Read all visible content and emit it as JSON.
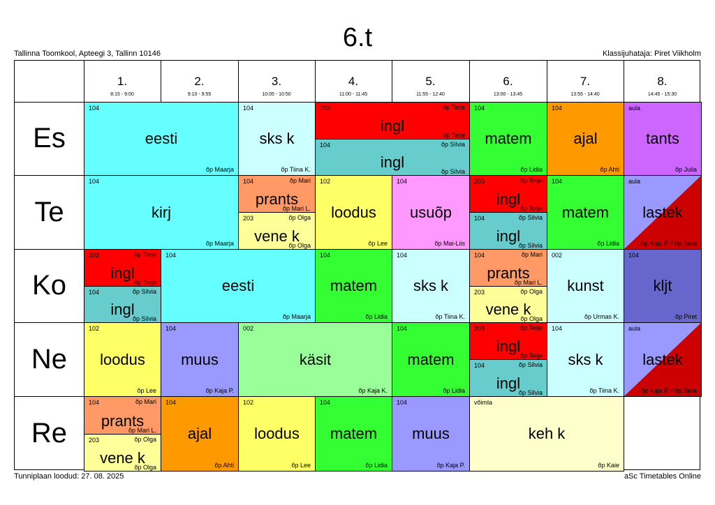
{
  "title": "6.t",
  "school": "Tallinna Toomkool, Apteegi 3, Tallinn 10146",
  "teacher_line": "Klassijuhataja: Piret Viikholm",
  "footer_left": "Tunniplaan loodud: 27. 08. 2025",
  "footer_right": "aSc Timetables Online",
  "periods": [
    {
      "num": "1.",
      "time": "8:15 - 9:00"
    },
    {
      "num": "2.",
      "time": "9:10 - 9:55"
    },
    {
      "num": "3.",
      "time": "10:05 - 10:50"
    },
    {
      "num": "4.",
      "time": "11:00 - 11:45"
    },
    {
      "num": "5.",
      "time": "11:55 - 12:40"
    },
    {
      "num": "6.",
      "time": "13:00 - 13:45"
    },
    {
      "num": "7.",
      "time": "13:55 - 14:40"
    },
    {
      "num": "8.",
      "time": "14:45 - 15:30"
    }
  ],
  "days": [
    "Es",
    "Te",
    "Ko",
    "Ne",
    "Re"
  ],
  "lessons": [
    {
      "day": 0,
      "start": 0,
      "span": 2,
      "part": "full",
      "room": "104",
      "subject": "eesti",
      "teacher": "õp Maarja",
      "color": "#66ffff"
    },
    {
      "day": 0,
      "start": 2,
      "span": 1,
      "part": "full",
      "room": "104",
      "subject": "sks k",
      "teacher": "õp Tiina K.",
      "color": "#ccffff"
    },
    {
      "day": 0,
      "start": 3,
      "span": 2,
      "part": "top",
      "room": "203",
      "subject": "ingl",
      "teacher_top": "õp Terje",
      "teacher": "õp Terje",
      "color": "#ff0000"
    },
    {
      "day": 0,
      "start": 3,
      "span": 2,
      "part": "bottom",
      "room": "104",
      "subject": "ingl",
      "teacher_top": "õp Silvia",
      "teacher": "õp Silvia",
      "color": "#66cccc"
    },
    {
      "day": 0,
      "start": 5,
      "span": 1,
      "part": "full",
      "room": "104",
      "subject": "matem",
      "teacher": "õp Lidia",
      "color": "#33ff33"
    },
    {
      "day": 0,
      "start": 6,
      "span": 1,
      "part": "full",
      "room": "104",
      "subject": "ajal",
      "teacher": "õp Ahti",
      "color": "#ff9900"
    },
    {
      "day": 0,
      "start": 7,
      "span": 1,
      "part": "full",
      "room": "aula",
      "subject": "tants",
      "teacher": "õp Julia",
      "color": "#cc66ff"
    },
    {
      "day": 1,
      "start": 0,
      "span": 2,
      "part": "full",
      "room": "104",
      "subject": "kirj",
      "teacher": "õp Maarja",
      "color": "#66ffff"
    },
    {
      "day": 1,
      "start": 2,
      "span": 1,
      "part": "top",
      "room": "104",
      "subject": "prants",
      "teacher_top": "õp Mari",
      "teacher": "õp Mari L.",
      "color": "#ff9966"
    },
    {
      "day": 1,
      "start": 2,
      "span": 1,
      "part": "bottom",
      "room": "203",
      "subject": "vene k",
      "teacher_top": "õp Olga",
      "teacher": "õp Olga",
      "color": "#ffff99"
    },
    {
      "day": 1,
      "start": 3,
      "span": 1,
      "part": "full",
      "room": "102",
      "subject": "loodus",
      "teacher": "õp Lee",
      "color": "#ffff66"
    },
    {
      "day": 1,
      "start": 4,
      "span": 1,
      "part": "full",
      "room": "104",
      "subject": "usuõp",
      "teacher": "õp Mai-Liis",
      "color": "#ff99ff"
    },
    {
      "day": 1,
      "start": 5,
      "span": 1,
      "part": "top",
      "room": "203",
      "subject": "ingl",
      "teacher_top": "õp Terje",
      "teacher": "õp Terje",
      "color": "#ff0000"
    },
    {
      "day": 1,
      "start": 5,
      "span": 1,
      "part": "bottom",
      "room": "104",
      "subject": "ingl",
      "teacher_top": "õp Silvia",
      "teacher": "õp Silvia",
      "color": "#66cccc"
    },
    {
      "day": 1,
      "start": 6,
      "span": 1,
      "part": "full",
      "room": "104",
      "subject": "matem",
      "teacher": "õp Lidia",
      "color": "#33ff33"
    },
    {
      "day": 1,
      "start": 7,
      "span": 1,
      "part": "full",
      "room": "aula",
      "subject": "lastek",
      "teacher": "õp Kaja P. / õp Jana",
      "color": "#9999ff",
      "color2": "#cc0000"
    },
    {
      "day": 2,
      "start": 0,
      "span": 1,
      "part": "top",
      "room": "203",
      "subject": "ingl",
      "teacher_top": "õp Terje",
      "teacher": "õp Terje",
      "color": "#ff0000"
    },
    {
      "day": 2,
      "start": 0,
      "span": 1,
      "part": "bottom",
      "room": "104",
      "subject": "ingl",
      "teacher_top": "õp Silvia",
      "teacher": "õp Silvia",
      "color": "#66cccc"
    },
    {
      "day": 2,
      "start": 1,
      "span": 2,
      "part": "full",
      "room": "104",
      "subject": "eesti",
      "teacher": "õp Maarja",
      "color": "#66ffff"
    },
    {
      "day": 2,
      "start": 3,
      "span": 1,
      "part": "full",
      "room": "104",
      "subject": "matem",
      "teacher": "õp Lidia",
      "color": "#33ff33"
    },
    {
      "day": 2,
      "start": 4,
      "span": 1,
      "part": "full",
      "room": "104",
      "subject": "sks k",
      "teacher": "õp Tiina K.",
      "color": "#ccffff"
    },
    {
      "day": 2,
      "start": 5,
      "span": 1,
      "part": "top",
      "room": "104",
      "subject": "prants",
      "teacher_top": "õp Mari",
      "teacher": "õp Mari L.",
      "color": "#ff9966"
    },
    {
      "day": 2,
      "start": 5,
      "span": 1,
      "part": "bottom",
      "room": "203",
      "subject": "vene k",
      "teacher_top": "õp Olga",
      "teacher": "õp Olga",
      "color": "#ffff99"
    },
    {
      "day": 2,
      "start": 6,
      "span": 1,
      "part": "full",
      "room": "002",
      "subject": "kunst",
      "teacher": "õp Urmas K.",
      "color": "#ccffff"
    },
    {
      "day": 2,
      "start": 7,
      "span": 1,
      "part": "full",
      "room": "104",
      "subject": "kljt",
      "teacher": "õp Piret",
      "color": "#6666cc"
    },
    {
      "day": 3,
      "start": 0,
      "span": 1,
      "part": "full",
      "room": "102",
      "subject": "loodus",
      "teacher": "õp Lee",
      "color": "#ffff66"
    },
    {
      "day": 3,
      "start": 1,
      "span": 1,
      "part": "full",
      "room": "104",
      "subject": "muus",
      "teacher": "õp Kaja P.",
      "color": "#9999ff"
    },
    {
      "day": 3,
      "start": 2,
      "span": 2,
      "part": "full",
      "room": "002",
      "subject": "käsit",
      "teacher": "õp Kaja K.",
      "color": "#99ff99"
    },
    {
      "day": 3,
      "start": 4,
      "span": 1,
      "part": "full",
      "room": "104",
      "subject": "matem",
      "teacher": "õp Lidia",
      "color": "#33ff33"
    },
    {
      "day": 3,
      "start": 5,
      "span": 1,
      "part": "top",
      "room": "203",
      "subject": "ingl",
      "teacher_top": "õp Terje",
      "teacher": "õp Terje",
      "color": "#ff0000"
    },
    {
      "day": 3,
      "start": 5,
      "span": 1,
      "part": "bottom",
      "room": "104",
      "subject": "ingl",
      "teacher_top": "õp Silvia",
      "teacher": "õp Silvia",
      "color": "#66cccc"
    },
    {
      "day": 3,
      "start": 6,
      "span": 1,
      "part": "full",
      "room": "104",
      "subject": "sks k",
      "teacher": "õp Tiina K.",
      "color": "#ccffff"
    },
    {
      "day": 3,
      "start": 7,
      "span": 1,
      "part": "full",
      "room": "aula",
      "subject": "lastek",
      "teacher": "õp Kaja P. / õp Jana",
      "color": "#9999ff",
      "color2": "#cc0000"
    },
    {
      "day": 4,
      "start": 0,
      "span": 1,
      "part": "top",
      "room": "104",
      "subject": "prants",
      "teacher_top": "õp Mari",
      "teacher": "õp Mari L.",
      "color": "#ff9966"
    },
    {
      "day": 4,
      "start": 0,
      "span": 1,
      "part": "bottom",
      "room": "203",
      "subject": "vene k",
      "teacher_top": "õp Olga",
      "teacher": "õp Olga",
      "color": "#ffff99"
    },
    {
      "day": 4,
      "start": 1,
      "span": 1,
      "part": "full",
      "room": "104",
      "subject": "ajal",
      "teacher": "õp Ahti",
      "color": "#ff9900"
    },
    {
      "day": 4,
      "start": 2,
      "span": 1,
      "part": "full",
      "room": "102",
      "subject": "loodus",
      "teacher": "õp Lee",
      "color": "#ffff66"
    },
    {
      "day": 4,
      "start": 3,
      "span": 1,
      "part": "full",
      "room": "104",
      "subject": "matem",
      "teacher": "õp Lidia",
      "color": "#33ff33"
    },
    {
      "day": 4,
      "start": 4,
      "span": 1,
      "part": "full",
      "room": "104",
      "subject": "muus",
      "teacher": "õp Kaja P.",
      "color": "#9999ff"
    },
    {
      "day": 4,
      "start": 5,
      "span": 2,
      "part": "full",
      "room": "võimla",
      "subject": "keh k",
      "teacher": "õp Kaie",
      "color": "#ffffcc"
    }
  ]
}
